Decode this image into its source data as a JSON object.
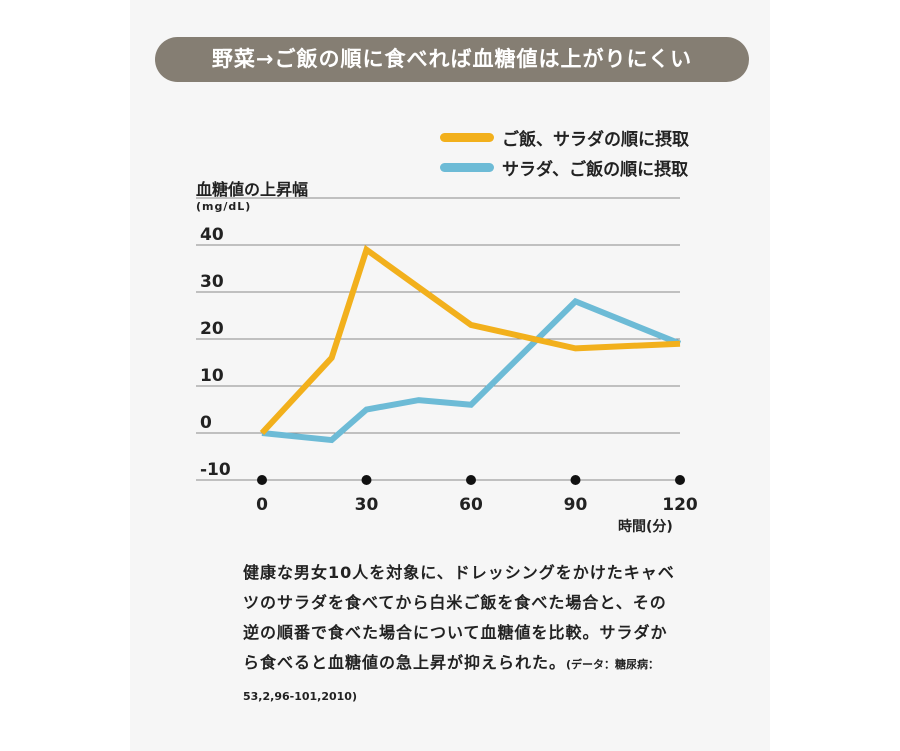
{
  "banner_title": "野菜→ご飯の順に食べれば血糖値は上がりにくい",
  "chart_data": {
    "type": "line",
    "ylabel": "血糖値の上昇幅",
    "yunit": "(mg/dL)",
    "xlabel": "時間(分)",
    "ylim": [
      -10,
      40
    ],
    "xlim": [
      0,
      120
    ],
    "yticks": [
      40,
      30,
      20,
      10,
      0,
      -10
    ],
    "xticks": [
      0,
      30,
      60,
      90,
      120
    ],
    "grid": true,
    "legend_position": "top-right",
    "series": [
      {
        "name": "ご飯、サラダの順に摂取",
        "color": "#f2b01c",
        "x": [
          0,
          20,
          30,
          60,
          90,
          120
        ],
        "y": [
          0,
          16,
          39,
          23,
          18,
          19
        ]
      },
      {
        "name": "サラダ、ご飯の順に摂取",
        "color": "#6dbbd6",
        "x": [
          0,
          20,
          30,
          45,
          60,
          90,
          120
        ],
        "y": [
          0,
          -1.5,
          5,
          7,
          6,
          28,
          19
        ]
      }
    ]
  },
  "description": {
    "text": "健康な男女10人を対象に、ドレッシングをかけたキャベツのサラダを食べてから白米ご飯を食べた場合と、その逆の順番で食べた場合について血糖値を比較。サラダから食べると血糖値の急上昇が抑えられた。",
    "source": "(データ：糖尿病：53,2,96-101,2010)"
  }
}
